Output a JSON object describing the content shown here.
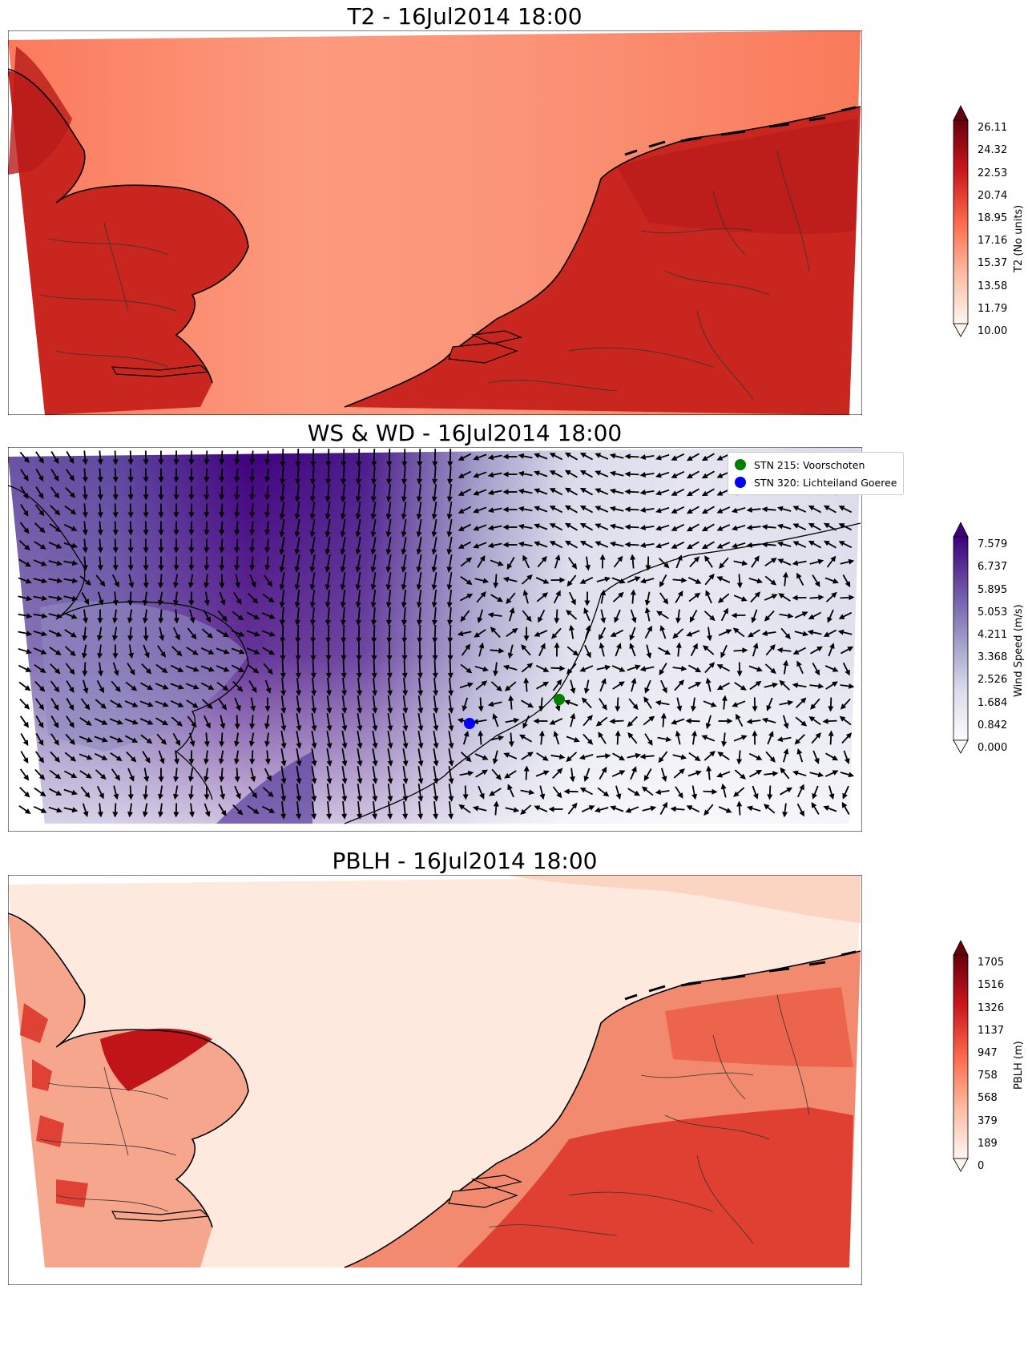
{
  "panels": [
    {
      "title": "T2 - 16Jul2014 18:00",
      "colorbar_label": "T2 (No units)",
      "colorbar_ticks": [
        "26.11",
        "24.32",
        "22.53",
        "20.74",
        "18.95",
        "17.16",
        "15.37",
        "13.58",
        "11.79",
        "10.00"
      ],
      "colormap": [
        "#fff5f0",
        "#fcbba1",
        "#fb6a4a",
        "#cb181d",
        "#67000d"
      ],
      "sea_color": "#f9876a",
      "land_color": "#c8261f"
    },
    {
      "title": "WS & WD - 16Jul2014 18:00",
      "colorbar_label": "Wind Speed (m/s)",
      "colorbar_ticks": [
        "7.579",
        "6.737",
        "5.895",
        "5.053",
        "4.211",
        "3.368",
        "2.526",
        "1.684",
        "0.842",
        "0.000"
      ],
      "colormap": [
        "#fcfbfd",
        "#dadaeb",
        "#9e9ac8",
        "#6a51a3",
        "#3f007d"
      ],
      "legend": [
        {
          "label": "STN 215: Voorschoten",
          "color": "#008000"
        },
        {
          "label": "STN 320: Lichteiland Goeree",
          "color": "#0000ff"
        }
      ]
    },
    {
      "title": "PBLH - 16Jul2014 18:00",
      "colorbar_label": "PBLH (m)",
      "colorbar_ticks": [
        "1705",
        "1516",
        "1326",
        "1137",
        "947",
        "758",
        "568",
        "379",
        "189",
        "0"
      ],
      "colormap": [
        "#fff5f0",
        "#fcbba1",
        "#fb6a4a",
        "#cb181d",
        "#67000d"
      ],
      "sea_color": "#fee7dc",
      "land_color": "#ef4a3a"
    }
  ]
}
